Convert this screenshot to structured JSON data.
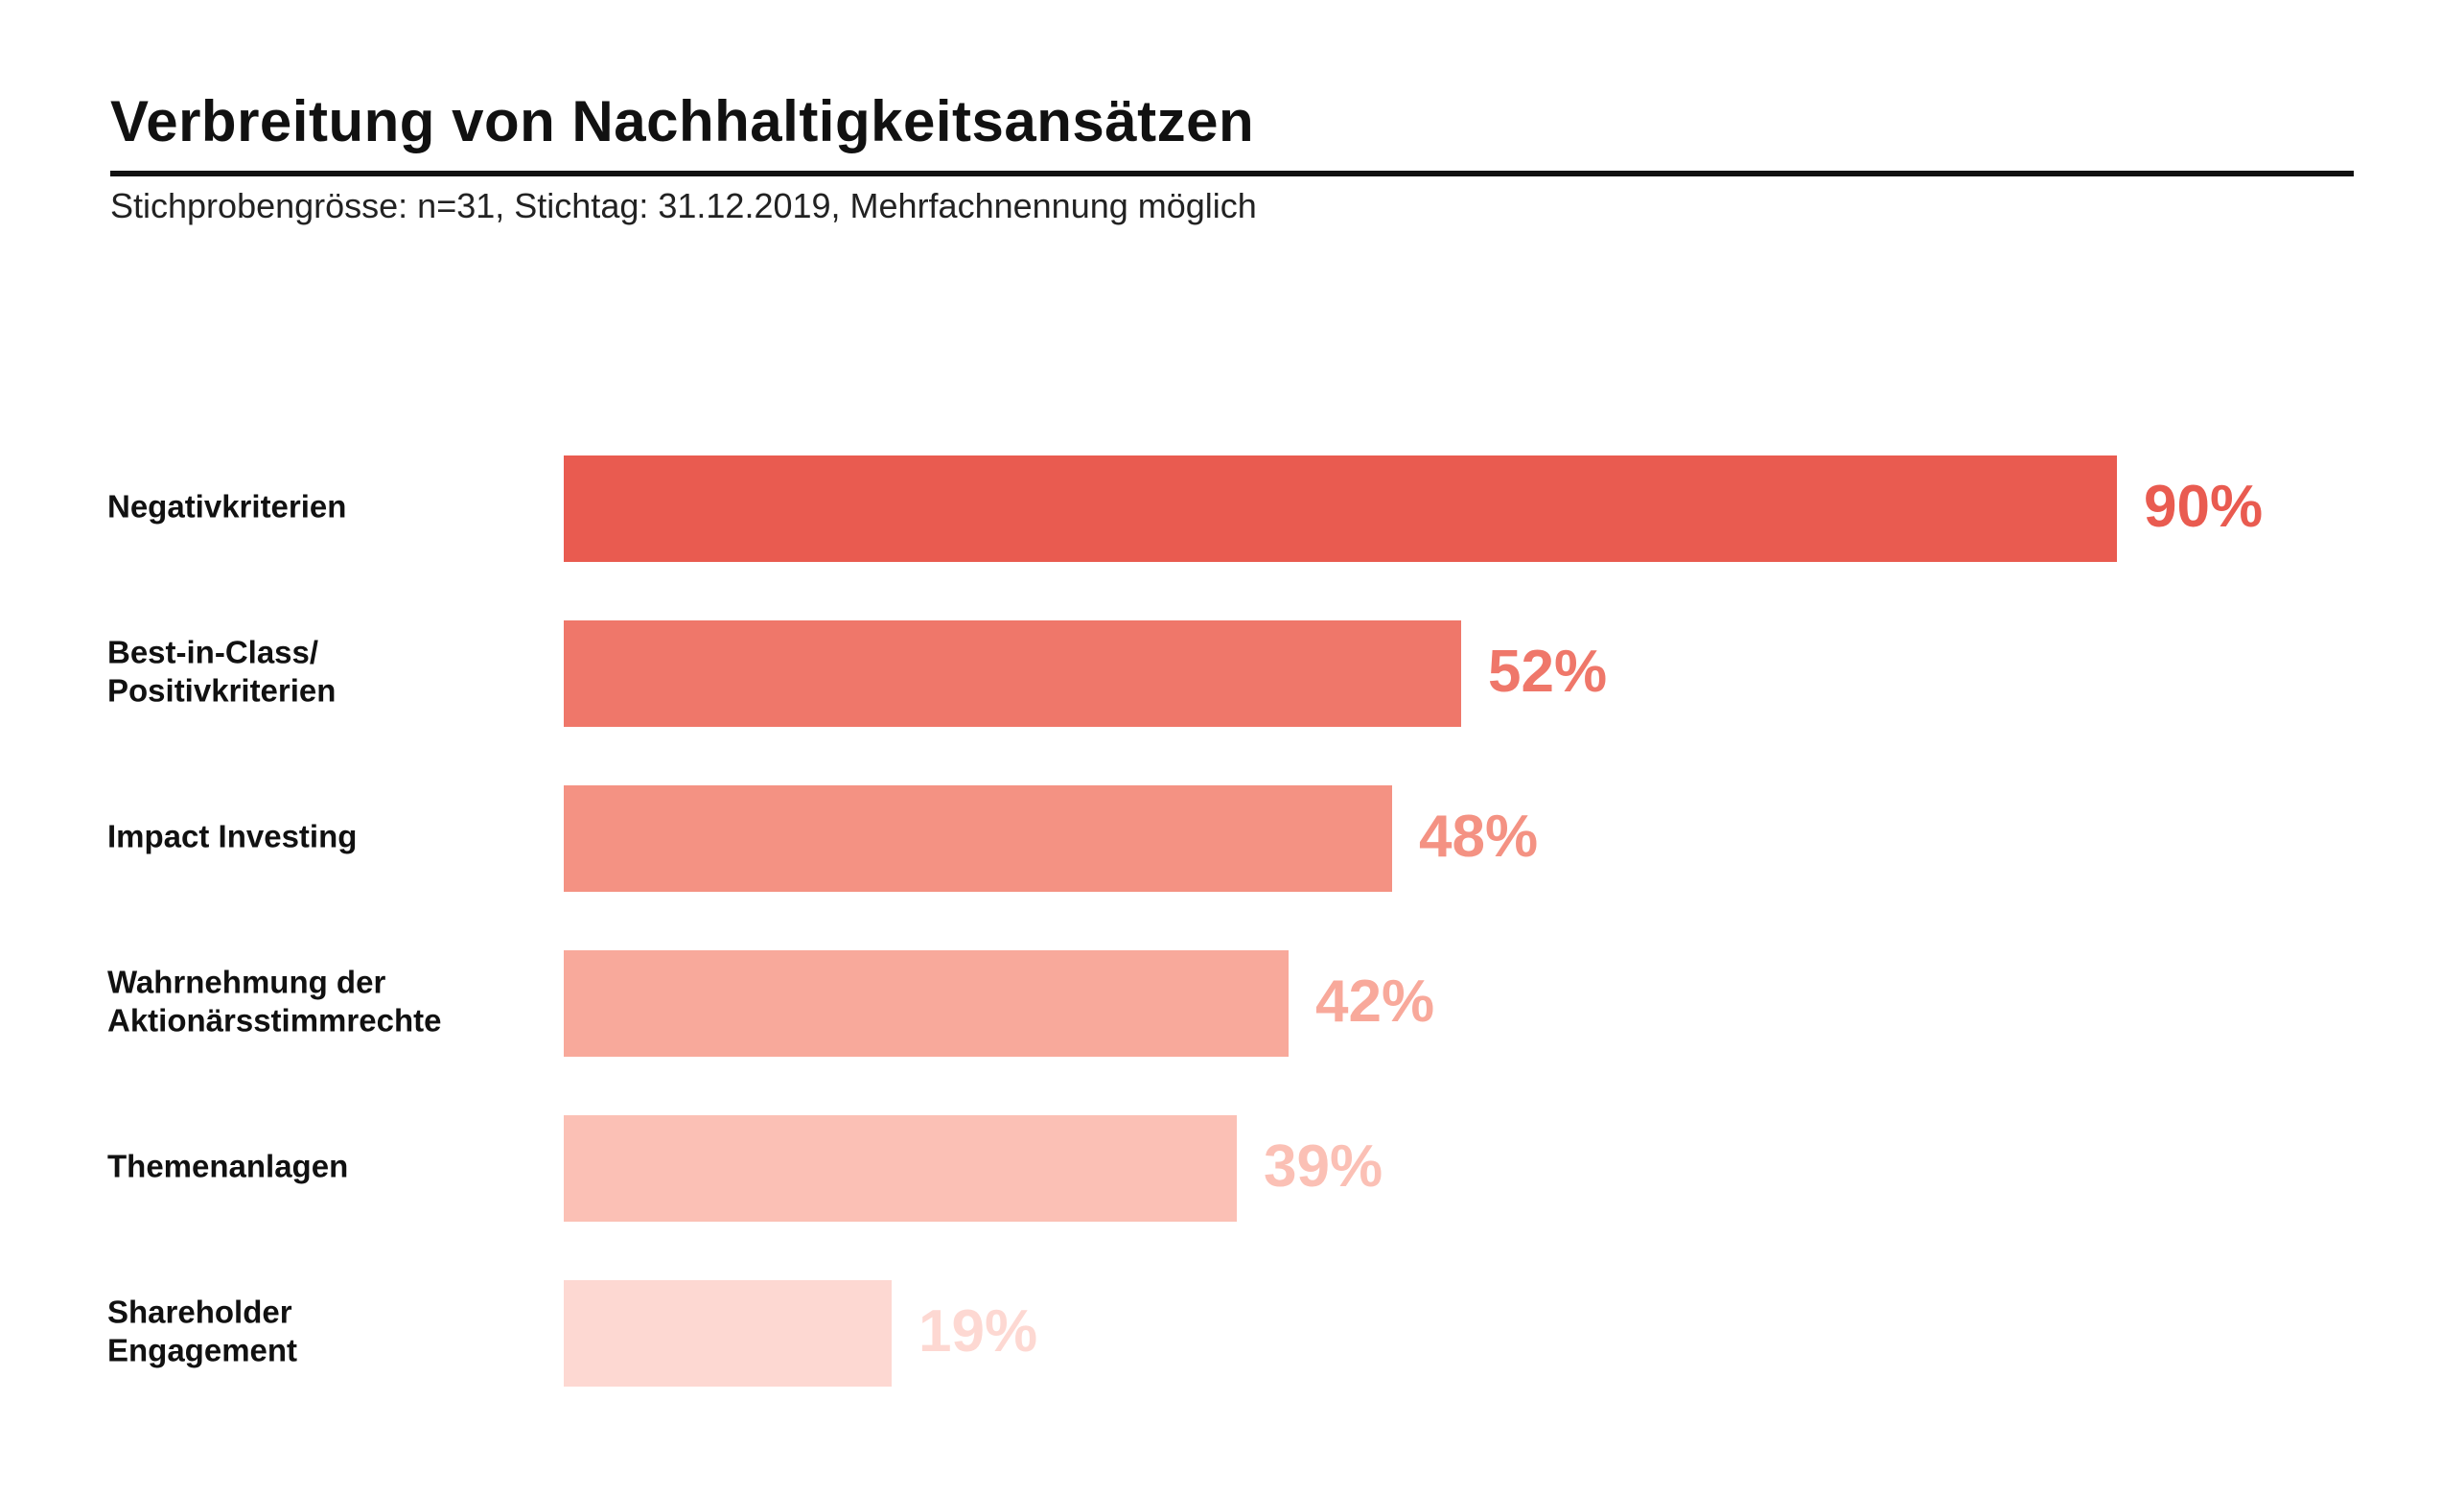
{
  "chart_data": {
    "type": "bar",
    "orientation": "horizontal",
    "title": "Verbreitung von Nachhaltigkeitsansätzen",
    "subtitle": "Stichprobengrösse: n=31, Stichtag: 31.12.2019, Mehrfachnennung möglich",
    "categories": [
      [
        "Negativkriterien"
      ],
      [
        "Best-in-Class/",
        "Positivkriterien"
      ],
      [
        "Impact Investing"
      ],
      [
        "Wahrnehmung der",
        "Aktionärsstimmrechte"
      ],
      [
        "Themenanlagen"
      ],
      [
        "Shareholder",
        "Engagement"
      ]
    ],
    "values": [
      90,
      52,
      48,
      42,
      39,
      19
    ],
    "value_labels": [
      "90%",
      "52%",
      "48%",
      "42%",
      "39%",
      "19%"
    ],
    "unit": "%",
    "xlim": [
      0,
      100
    ],
    "grid": false,
    "legend": "none",
    "colors": [
      "#e95b50",
      "#ef776a",
      "#f49283",
      "#f8a99b",
      "#fbc0b5",
      "#fdd8d2"
    ]
  }
}
